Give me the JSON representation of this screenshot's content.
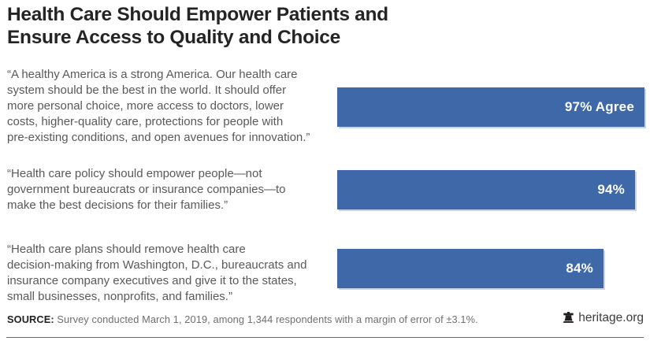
{
  "title_lines": [
    "Health Care Should Empower Patients and",
    "Ensure Access to Quality and Choice"
  ],
  "footer": {
    "source_label": "SOURCE:",
    "source_text": "Survey conducted March 1, 2019, among 1,344 respondents with a margin of error of ±3.1%.",
    "brand": "heritage.org",
    "brand_icon": "liberty-bell-icon"
  },
  "colors": {
    "bar": "#3e68a8",
    "bar_shadow": "#c5cfe2",
    "bar_label": "#ffffff",
    "title": "#262324",
    "quote_text": "#58595c",
    "source_text": "#6d6e71",
    "brand_text": "#3d3c3e",
    "divider": "#68686b"
  },
  "chart_data": {
    "type": "bar",
    "orientation": "horizontal",
    "title": "Health Care Should Empower Patients and Ensure Access to Quality and Choice",
    "categories": [
      "“A healthy America is a strong America. Our health care\nsystem should be the best in the world. It should offer\nmore personal choice, more access to doctors, lower\ncosts, higher-quality care, protections for people with\npre-existing conditions, and open avenues for innovation.”",
      "“Health care policy should empower people—not\ngovernment bureaucrats or insurance companies—to\nmake the best decisions for their families.”",
      "“Health care plans should remove health care\ndecision-making from Washington, D.C., bureaucrats and\ninsurance company executives and give it to the states,\nsmall businesses, nonprofits, and families.”"
    ],
    "values": [
      97,
      94,
      84
    ],
    "value_labels": [
      "97% Agree",
      "94%",
      "84%"
    ],
    "xlim": [
      0,
      100
    ],
    "grid": false,
    "legend": "none",
    "bar_color": "#3e68a8",
    "source": "Survey conducted March 1, 2019, among 1,344 respondents with a margin of error of ±3.1%."
  }
}
